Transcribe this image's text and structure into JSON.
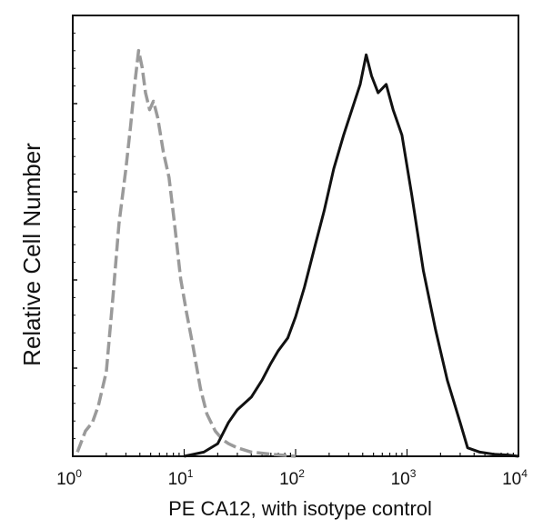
{
  "chart_data": {
    "type": "line",
    "title": "",
    "xlabel": "PE  CA12,  with isotype control",
    "ylabel": "Relative Cell Number",
    "x_scale": "log",
    "xlim": [
      1,
      10000
    ],
    "ylim": [
      0,
      100
    ],
    "x_ticks": [
      {
        "base": "10",
        "exp": "0",
        "value": 1
      },
      {
        "base": "10",
        "exp": "1",
        "value": 10
      },
      {
        "base": "10",
        "exp": "2",
        "value": 100
      },
      {
        "base": "10",
        "exp": "3",
        "value": 1000
      },
      {
        "base": "10",
        "exp": "4",
        "value": 10000
      }
    ],
    "y_ticks_labeled": false,
    "grid": false,
    "legend": "none",
    "series": [
      {
        "color": "#9a9a9a",
        "style": "dashed",
        "x": [
          1.1,
          1.3,
          1.5,
          1.7,
          2.0,
          2.3,
          2.6,
          3.0,
          3.3,
          3.6,
          3.9,
          4.2,
          4.5,
          4.9,
          5.3,
          5.8,
          6.5,
          7.3,
          8.2,
          9.3,
          10.5,
          12,
          14,
          16,
          19,
          22,
          25,
          30,
          40,
          60,
          100
        ],
        "y": [
          1,
          6,
          8,
          12,
          20,
          38,
          55,
          68,
          78,
          88,
          96,
          92,
          86,
          82,
          84,
          80,
          72,
          66,
          55,
          42,
          34,
          26,
          16,
          10,
          6,
          4,
          3,
          2,
          1,
          0.5,
          0
        ]
      },
      {
        "color": "#111111",
        "style": "solid",
        "x": [
          10,
          15,
          20,
          25,
          30,
          40,
          50,
          60,
          70,
          85,
          100,
          120,
          150,
          180,
          220,
          270,
          320,
          380,
          430,
          480,
          550,
          650,
          750,
          900,
          1100,
          1400,
          1800,
          2300,
          3000,
          3500,
          4500,
          6000,
          8000,
          10000
        ],
        "y": [
          0,
          1,
          3,
          8,
          11,
          14,
          18,
          22,
          25,
          28,
          33,
          40,
          50,
          58,
          68,
          76,
          82,
          88,
          95,
          90,
          86,
          88,
          82,
          76,
          62,
          44,
          30,
          18,
          8,
          2,
          1,
          0.5,
          0.3,
          0
        ]
      }
    ]
  }
}
